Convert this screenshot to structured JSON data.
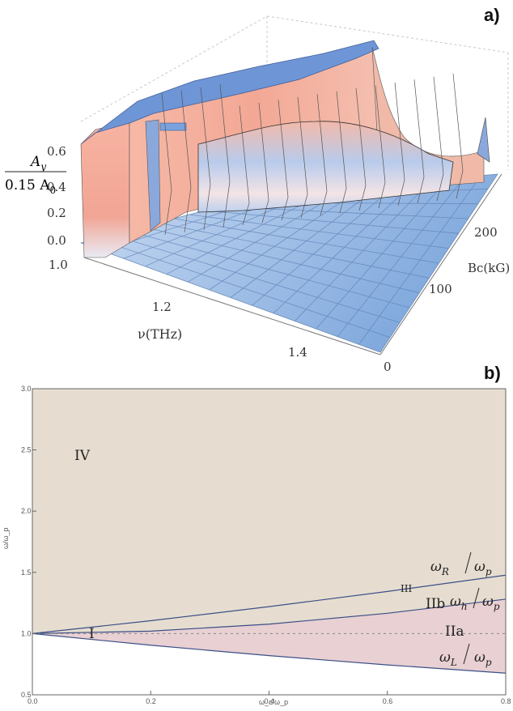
{
  "panel_a": {
    "label": "a)",
    "ylabel_num": "A",
    "ylabel_num_sub": "y",
    "ylabel_den": "0.15 A",
    "ylabel_den_sub": "0",
    "xlabel": "ν(THz)",
    "zlabel": "Bc(kG)",
    "x_ticks": [
      "1.0",
      "1.2",
      "1.4"
    ],
    "y_ticks": [
      "0.0",
      "0.2",
      "0.4",
      "0.6"
    ],
    "z_ticks": [
      "0",
      "100",
      "200"
    ]
  },
  "panel_b": {
    "label": "b)",
    "xlabel": "ω_c/ω_p",
    "ylabel": "ω/ω_p",
    "regions": {
      "I": "I",
      "IIa": "IIa",
      "IIb": "IIb",
      "III": "III",
      "IV": "IV"
    },
    "curve_labels": {
      "R": {
        "sym": "ω",
        "sub": "R",
        "den": "ω",
        "den_sub": "p"
      },
      "h": {
        "sym": "ω",
        "sub": "h",
        "den": "ω",
        "den_sub": "p"
      },
      "L": {
        "sym": "ω",
        "sub": "L",
        "den": "ω",
        "den_sub": "p"
      }
    }
  },
  "chart_data": [
    {
      "type": "surface",
      "title": "",
      "xlabel": "ν(THz)",
      "ylabel": "A_y / 0.15 A_0",
      "zlabel": "Bc(kG)",
      "xlim": [
        1.0,
        1.5
      ],
      "ylim": [
        0.0,
        0.6
      ],
      "zlim": [
        0,
        250
      ],
      "colors": {
        "low": "#8fb4e2",
        "high": "#f4a393",
        "top": "#6e95d6"
      }
    },
    {
      "type": "line",
      "xlabel": "ω_c/ω_p",
      "ylabel": "ω/ω_p",
      "xlim": [
        0.0,
        0.8
      ],
      "ylim": [
        0.5,
        3.0
      ],
      "x_ticks": [
        0.0,
        0.2,
        0.4,
        0.6,
        0.8
      ],
      "y_ticks": [
        0.5,
        1.0,
        1.5,
        2.0,
        2.5,
        3.0
      ],
      "series": [
        {
          "name": "ω_R/ω_p",
          "x": [
            0.0,
            0.2,
            0.4,
            0.6,
            0.8
          ],
          "y": [
            1.0,
            1.105,
            1.22,
            1.344,
            1.477
          ]
        },
        {
          "name": "ω_h/ω_p",
          "x": [
            0.0,
            0.2,
            0.4,
            0.6,
            0.8
          ],
          "y": [
            1.0,
            1.02,
            1.077,
            1.166,
            1.281
          ]
        },
        {
          "name": "ω_L/ω_p",
          "x": [
            0.0,
            0.2,
            0.4,
            0.6,
            0.8
          ],
          "y": [
            1.0,
            0.905,
            0.82,
            0.744,
            0.677
          ]
        },
        {
          "name": "",
          "x": [
            0.0,
            0.8
          ],
          "y": [
            1.0,
            1.0
          ],
          "style": "dashed"
        }
      ],
      "colors": {
        "region_IV": "#e6ddd0",
        "region_II": "#e8d0d3",
        "curve": "#3c4f86"
      }
    }
  ]
}
